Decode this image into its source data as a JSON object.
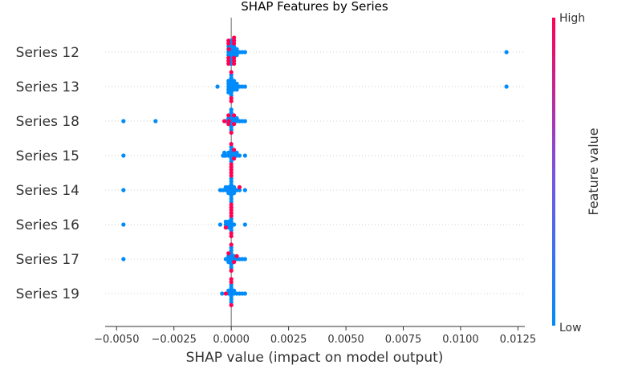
{
  "chart_data": {
    "type": "scatter",
    "title": "SHAP Features by Series",
    "xlabel": "SHAP value (impact on model output)",
    "xlim": [
      -0.0055,
      0.0128
    ],
    "xticks": [
      -0.005,
      -0.0025,
      0.0,
      0.0025,
      0.005,
      0.0075,
      0.01,
      0.0125
    ],
    "xtick_labels": [
      "−0.0050",
      "−0.0025",
      "0.0000",
      "0.0025",
      "0.0050",
      "0.0075",
      "0.0100",
      "0.0125"
    ],
    "grid": false,
    "colorbar": {
      "label": "Feature value",
      "high_label": "High",
      "low_label": "Low",
      "high_color": "#ff0052",
      "low_color": "#008bfb"
    },
    "features": [
      {
        "name": "Series 12",
        "values": [
          0.012,
          0.0,
          0.0,
          0.0,
          0.0,
          0.0,
          0.0,
          0.0,
          0.0,
          0.0,
          -0.00012,
          0.00012,
          -0.00012,
          0.00012,
          -0.00012,
          0.00012,
          0.00024,
          -0.0001,
          0.00036,
          -0.00012,
          0.00024,
          0.00012,
          0.00048,
          0.00024,
          0.0006,
          -0.00012,
          0.00012,
          -0.0001,
          0.00012,
          -0.00012,
          0.00012,
          -0.00012,
          0.00012,
          -0.00012,
          0.00012,
          -0.00012,
          0.00012
        ],
        "feature_value": [
          0,
          0,
          0,
          0,
          0,
          0,
          0,
          0,
          0,
          0,
          0,
          0,
          0,
          0,
          0,
          0,
          0,
          0,
          0,
          0,
          0,
          0,
          0,
          0,
          0,
          1,
          1,
          1,
          1,
          1,
          1,
          1,
          1,
          1,
          1,
          1,
          1
        ]
      },
      {
        "name": "Series 13",
        "values": [
          0.012,
          0.0,
          0.0,
          0.0,
          0.0,
          0.0,
          0.0,
          0.0,
          0.0,
          -0.00012,
          0.00012,
          -0.00012,
          0.00012,
          -0.00012,
          0.00012,
          0.00024,
          -0.0001,
          0.00036,
          -0.00012,
          0.00024,
          0.00012,
          0.00048,
          0.00024,
          0.0006,
          -0.00012,
          -0.0006,
          0.0,
          0.0,
          0.0
        ],
        "feature_value": [
          0,
          0,
          0,
          0,
          0,
          0,
          0,
          0,
          0,
          0,
          0,
          0,
          0,
          0,
          0,
          0,
          0,
          0,
          0,
          0,
          0,
          0,
          0,
          0,
          0,
          0,
          1,
          1,
          1
        ]
      },
      {
        "name": "Series 18",
        "values": [
          -0.0047,
          -0.0033,
          0.0,
          0.0,
          0.0,
          0.0,
          0.0,
          0.0,
          0.0,
          0.0,
          -0.00012,
          0.00012,
          -0.00012,
          0.00012,
          0.00024,
          -0.00024,
          0.00036,
          0.00024,
          0.00048,
          0.0006,
          -0.0003,
          0.0,
          -0.00012,
          0.00012,
          -0.00012,
          -0.0001,
          0.00012
        ],
        "feature_value": [
          0,
          0,
          0,
          0,
          0,
          0,
          0,
          0,
          0,
          0,
          0,
          0,
          0,
          0,
          0,
          0,
          0,
          0,
          0,
          0,
          1,
          1,
          1,
          1,
          1,
          1,
          1
        ]
      },
      {
        "name": "Series 15",
        "values": [
          -0.0047,
          -0.0003,
          -0.00025,
          -0.0003,
          0.0,
          0.0,
          0.0,
          0.0,
          0.0,
          0.0,
          -0.00012,
          0.00012,
          -0.00012,
          0.00012,
          0.00024,
          -0.00024,
          0.00036,
          0.00024,
          0.0006,
          -0.00036,
          0.0,
          0.0,
          0.00012,
          0.00012,
          0.0
        ],
        "feature_value": [
          0,
          0,
          0,
          0,
          0,
          0,
          0,
          0,
          0,
          0,
          0,
          0,
          0,
          0,
          0,
          0,
          0,
          0,
          0,
          0,
          1,
          1,
          1,
          1,
          1
        ]
      },
      {
        "name": "Series 14",
        "values": [
          -0.0047,
          0.0,
          0.0,
          0.0,
          0.0,
          0.0,
          0.0,
          0.0,
          0.0,
          0.0,
          -0.00012,
          0.00012,
          -0.00012,
          0.00012,
          -0.00012,
          0.00012,
          -0.00024,
          0.00024,
          -0.00036,
          0.00036,
          -0.00048,
          -0.00024,
          0.0006,
          0.0,
          0.0,
          0.0,
          0.0,
          0.0,
          0.00036
        ],
        "feature_value": [
          0,
          0,
          0,
          0,
          0,
          0,
          0,
          0,
          0,
          0,
          0,
          0,
          0,
          0,
          0,
          0,
          0,
          0,
          0,
          0,
          0,
          0,
          0,
          1,
          1,
          1,
          1,
          1,
          1
        ]
      },
      {
        "name": "Series 16",
        "values": [
          -0.0047,
          -0.00024,
          -0.00048,
          -0.00024,
          -0.00012,
          -0.00012,
          -0.00012,
          0.0,
          0.0,
          0.0,
          0.0,
          0.0,
          0.00012,
          0.0006,
          -0.0001,
          -0.0001,
          -0.00024,
          0.0,
          0.0,
          0.0,
          0.0,
          0.0
        ],
        "feature_value": [
          0,
          0,
          0,
          0,
          0,
          0,
          0,
          0,
          0,
          0,
          0,
          0,
          0,
          0,
          0,
          0,
          1,
          1,
          1,
          1,
          1,
          1
        ]
      },
      {
        "name": "Series 17",
        "values": [
          -0.0047,
          0.0,
          0.0,
          0.0,
          0.0,
          0.0,
          0.0,
          0.0,
          0.0,
          -0.00012,
          0.00012,
          -0.00012,
          0.00012,
          -0.00024,
          0.00024,
          -0.00012,
          0.00036,
          0.00048,
          0.0006,
          0.0,
          0.00024,
          -0.00012,
          0.00012,
          0.0
        ],
        "feature_value": [
          0,
          0,
          0,
          0,
          0,
          0,
          0,
          0,
          0,
          0,
          0,
          0,
          0,
          0,
          0,
          0,
          0,
          0,
          0,
          1,
          1,
          1,
          1,
          1
        ]
      },
      {
        "name": "Series 19",
        "values": [
          0.0,
          0.0,
          0.0,
          0.0,
          0.0,
          0.0,
          0.0,
          -0.00012,
          0.00012,
          -0.00012,
          0.00012,
          0.00024,
          0.00036,
          0.00048,
          0.0006,
          -0.0004,
          -0.00024,
          0.0,
          0.0,
          0.0
        ],
        "feature_value": [
          0,
          0,
          0,
          0,
          0,
          0,
          0,
          0,
          0,
          0,
          0,
          0,
          0,
          0,
          0,
          0,
          1,
          1,
          1,
          1
        ]
      }
    ]
  }
}
